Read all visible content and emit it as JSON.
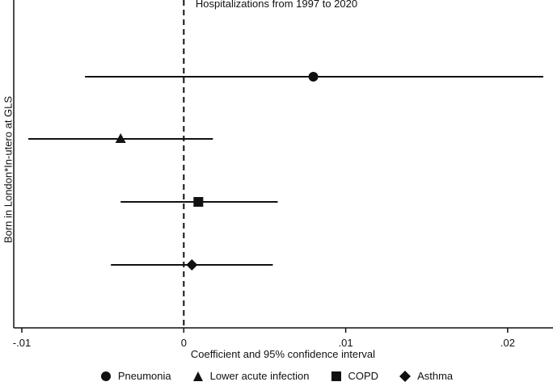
{
  "chart_data": {
    "type": "coefficient-plot",
    "title": "Hospitalizations from 1997 to 2020",
    "xlabel": "Coefficient and  95% confidence interval",
    "ylabel": "Born in London*In-utero at GLS",
    "xlim": [
      -0.0105,
      0.0228
    ],
    "xticks": [
      {
        "value": -0.01,
        "label": "-.01"
      },
      {
        "value": 0,
        "label": "0"
      },
      {
        "value": 0.01,
        "label": ".01"
      },
      {
        "value": 0.02,
        "label": ".02"
      }
    ],
    "reference_line": 0,
    "grid": false,
    "legend_position": "bottom",
    "series": [
      {
        "name": "Pneumonia",
        "marker": "circle",
        "estimate": 0.008,
        "ci_low": -0.0061,
        "ci_high": 0.0222
      },
      {
        "name": "Lower acute infection",
        "marker": "triangle",
        "estimate": -0.0039,
        "ci_low": -0.0096,
        "ci_high": 0.0018
      },
      {
        "name": "COPD",
        "marker": "square",
        "estimate": 0.0009,
        "ci_low": -0.0039,
        "ci_high": 0.0058
      },
      {
        "name": "Asthma",
        "marker": "diamond",
        "estimate": 0.0005,
        "ci_low": -0.0045,
        "ci_high": 0.0055
      }
    ],
    "color": "#111111"
  }
}
